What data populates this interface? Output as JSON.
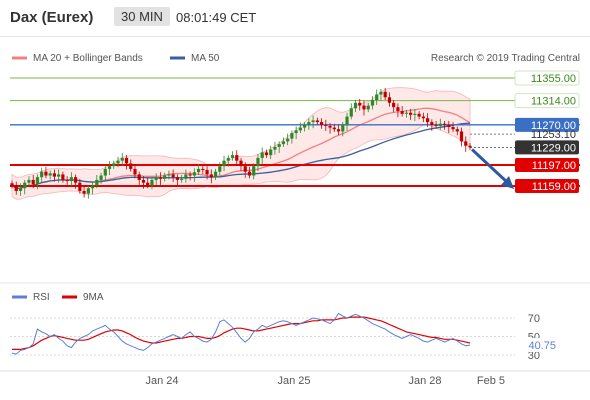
{
  "header": {
    "title": "Dax (Eurex)",
    "timeframe": "30 MIN",
    "time": "08:01:49 CET"
  },
  "legend": {
    "ma20": "MA 20 + Bollinger Bands",
    "ma50": "MA 50",
    "credit": "Research © 2019 Trading Central"
  },
  "rsi_legend": {
    "rsi": "RSI",
    "ma": "9MA"
  },
  "colors": {
    "support": "#e00000",
    "resistance": "#7ab648",
    "pivot": "#3a6fc4",
    "candle_up": "#2a8a2a",
    "candle_down": "#c00000",
    "ma20": "#f08080",
    "ma50": "#3a5fa0",
    "rsi": "#5b7fd9",
    "rsi_ma": "#e00000"
  },
  "chart_data": [
    {
      "type": "candlestick",
      "price_range": [
        11120,
        11370
      ],
      "levels": [
        {
          "value": 11355.0,
          "label": "11355.00",
          "kind": "resistance"
        },
        {
          "value": 11314.0,
          "label": "11314.00",
          "kind": "resistance"
        },
        {
          "value": 11270.0,
          "label": "11270.00",
          "kind": "pivot"
        },
        {
          "value": 11253.1,
          "label": "11253.10",
          "kind": "ma"
        },
        {
          "value": 11229.0,
          "label": "11229.00",
          "kind": "last"
        },
        {
          "value": 11197.0,
          "label": "11197.00",
          "kind": "support"
        },
        {
          "value": 11159.0,
          "label": "11159.00",
          "kind": "support"
        }
      ],
      "x_labels": [
        "Jan 24",
        "Jan 25",
        "Jan 28",
        "Feb 5"
      ],
      "close": [
        11160,
        11150,
        11155,
        11165,
        11170,
        11162,
        11175,
        11185,
        11178,
        11182,
        11176,
        11180,
        11170,
        11168,
        11175,
        11165,
        11150,
        11145,
        11155,
        11160,
        11170,
        11178,
        11190,
        11195,
        11200,
        11205,
        11210,
        11200,
        11190,
        11180,
        11170,
        11165,
        11160,
        11170,
        11175,
        11172,
        11178,
        11180,
        11175,
        11170,
        11172,
        11180,
        11178,
        11184,
        11190,
        11188,
        11180,
        11175,
        11185,
        11195,
        11205,
        11210,
        11215,
        11205,
        11195,
        11185,
        11178,
        11195,
        11210,
        11220,
        11215,
        11225,
        11230,
        11235,
        11240,
        11245,
        11255,
        11260,
        11265,
        11270,
        11275,
        11278,
        11275,
        11270,
        11268,
        11265,
        11262,
        11258,
        11270,
        11285,
        11300,
        11310,
        11305,
        11298,
        11305,
        11315,
        11325,
        11330,
        11320,
        11310,
        11302,
        11295,
        11290,
        11292,
        11288,
        11290,
        11285,
        11282,
        11275,
        11270,
        11268,
        11272,
        11270,
        11266,
        11262,
        11258,
        11240,
        11232,
        11229
      ]
    },
    {
      "type": "line",
      "name_rsi": "RSI",
      "name_ma": "9MA",
      "y_ticks": [
        30,
        50,
        70
      ],
      "value_label": "40.75",
      "rsi": [
        32,
        31,
        35,
        36,
        38,
        42,
        58,
        55,
        53,
        50,
        52,
        48,
        45,
        40,
        38,
        44,
        48,
        50,
        52,
        56,
        58,
        60,
        62,
        58,
        55,
        50,
        45,
        42,
        40,
        38,
        36,
        35,
        38,
        42,
        44,
        46,
        48,
        50,
        52,
        50,
        48,
        52,
        55,
        50,
        48,
        45,
        44,
        47,
        55,
        66,
        68,
        64,
        60,
        54,
        48,
        44,
        48,
        55,
        58,
        62,
        60,
        62,
        64,
        66,
        67,
        66,
        64,
        62,
        64,
        66,
        68,
        70,
        69,
        68,
        66,
        64,
        68,
        75,
        72,
        70,
        72,
        74,
        72,
        70,
        67,
        64,
        62,
        60,
        58,
        55,
        52,
        50,
        48,
        50,
        52,
        50,
        48,
        45,
        44,
        46,
        48,
        46,
        44,
        46,
        48,
        45,
        42,
        40,
        40.75
      ],
      "ma": [
        36,
        36,
        36,
        37,
        38,
        40,
        43,
        46,
        48,
        50,
        51,
        50,
        49,
        48,
        47,
        46,
        46,
        46,
        47,
        49,
        51,
        53,
        55,
        56,
        57,
        57,
        56,
        54,
        52,
        49,
        47,
        45,
        44,
        43,
        43,
        44,
        45,
        46,
        47,
        48,
        48,
        49,
        50,
        50,
        50,
        49,
        48,
        48,
        49,
        51,
        54,
        56,
        58,
        59,
        59,
        58,
        57,
        56,
        56,
        57,
        58,
        59,
        60,
        61,
        62,
        63,
        64,
        64,
        64,
        65,
        66,
        67,
        67,
        68,
        68,
        68,
        68,
        69,
        70,
        70,
        71,
        71,
        71,
        71,
        70,
        69,
        68,
        67,
        65,
        63,
        61,
        59,
        57,
        55,
        54,
        53,
        52,
        51,
        50,
        49,
        49,
        48,
        47,
        47,
        47,
        46,
        45,
        44,
        43
      ]
    }
  ]
}
